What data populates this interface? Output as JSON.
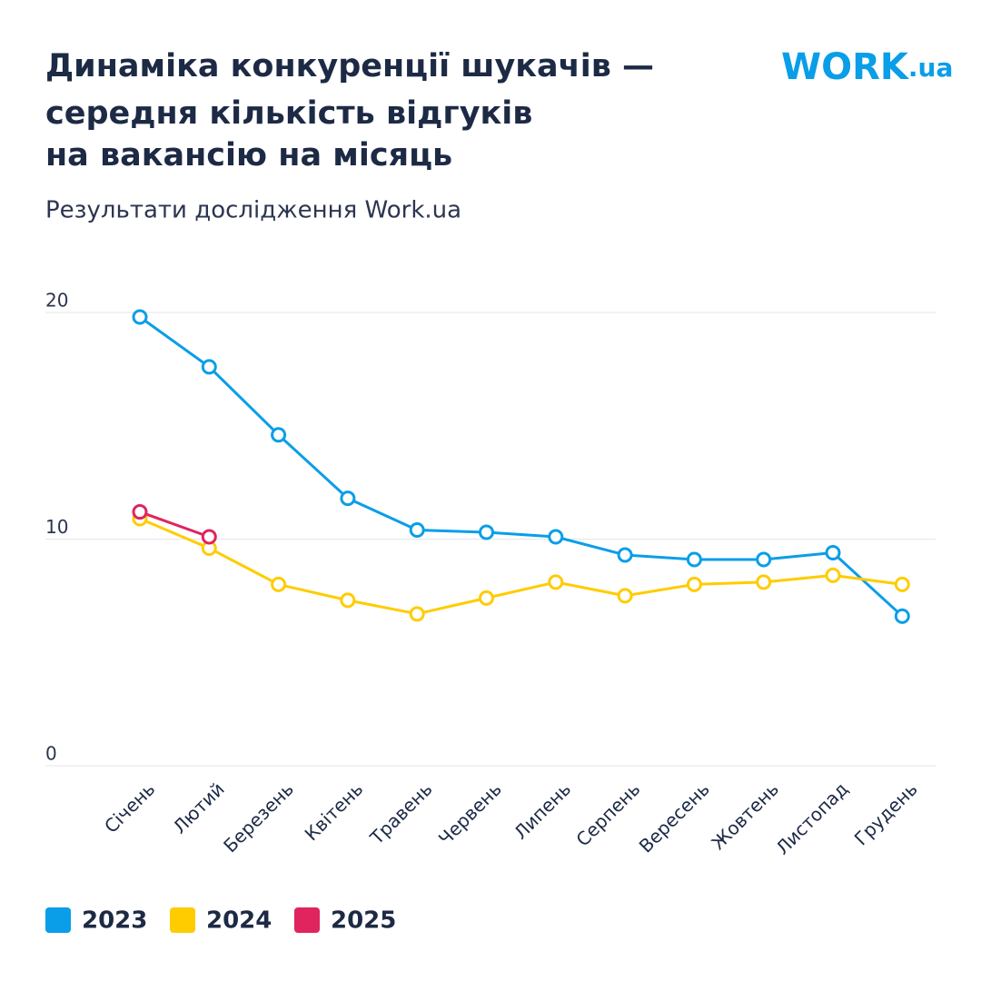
{
  "chart_data": {
    "type": "line",
    "title": [
      "Динаміка конкуренції шукачів —",
      "середня кількість відгуків",
      "на вакансію на місяць"
    ],
    "subtitle": "Результати дослідження Work.ua",
    "logo": {
      "main": "WORK",
      "suffix": ".ua"
    },
    "categories": [
      "Січень",
      "Лютий",
      "Березень",
      "Квітень",
      "Травень",
      "Червень",
      "Липень",
      "Серпень",
      "Вересень",
      "Жовтень",
      "Листопад",
      "Грудень"
    ],
    "series": [
      {
        "name": "2023",
        "color": "#0a9ee8",
        "values": [
          19.8,
          17.6,
          14.6,
          11.8,
          10.4,
          10.3,
          10.1,
          9.3,
          9.1,
          9.1,
          9.4,
          6.6
        ]
      },
      {
        "name": "2024",
        "color": "#ffcc00",
        "values": [
          10.9,
          9.6,
          8.0,
          7.3,
          6.7,
          7.4,
          8.1,
          7.5,
          8.0,
          8.1,
          8.4,
          8.0
        ]
      },
      {
        "name": "2025",
        "color": "#e0245e",
        "values": [
          11.2,
          10.1,
          null,
          null,
          null,
          null,
          null,
          null,
          null,
          null,
          null,
          null
        ]
      }
    ],
    "ylim": [
      0,
      20
    ],
    "yticks": [
      0,
      10,
      20
    ],
    "grid": true
  }
}
